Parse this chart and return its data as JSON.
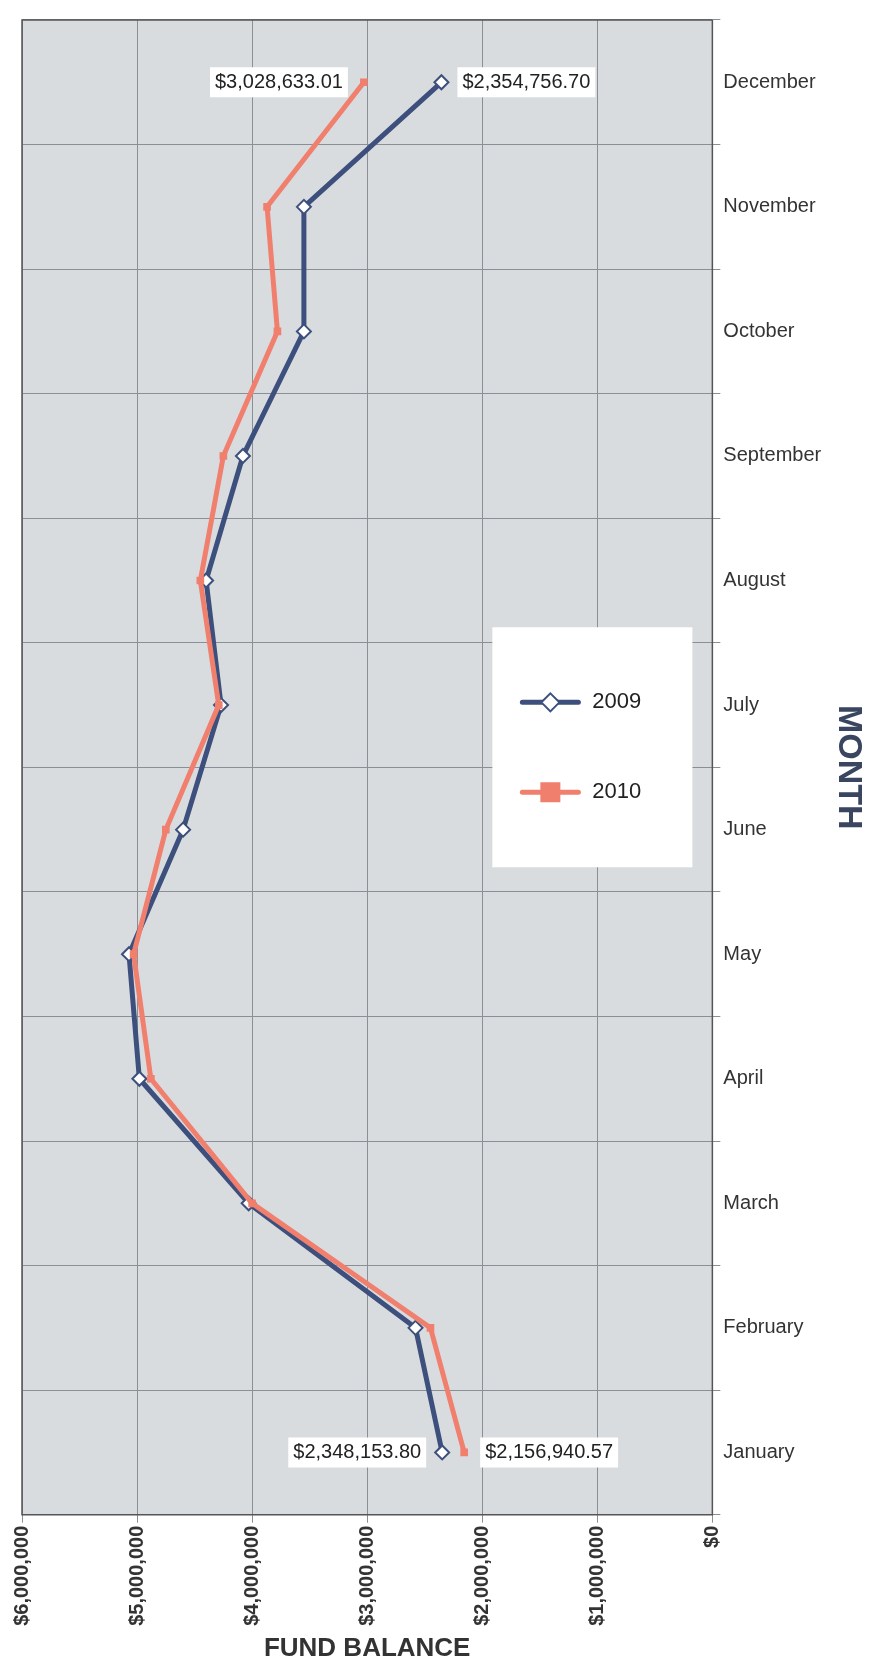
{
  "chart_data": {
    "type": "line",
    "orientation": "horizontal",
    "xlabel": "FUND BALANCE",
    "ylabel": "MONTH",
    "categories": [
      "December",
      "November",
      "October",
      "September",
      "August",
      "July",
      "June",
      "May",
      "April",
      "March",
      "February",
      "January"
    ],
    "xlim": [
      6000000,
      0
    ],
    "xticks": [
      {
        "value": 6000000,
        "label": "$6,000,000"
      },
      {
        "value": 5000000,
        "label": "$5,000,000"
      },
      {
        "value": 4000000,
        "label": "$4,000,000"
      },
      {
        "value": 3000000,
        "label": "$3,000,000"
      },
      {
        "value": 2000000,
        "label": "$2,000,000"
      },
      {
        "value": 1000000,
        "label": "$1,000,000"
      },
      {
        "value": 0,
        "label": "$0"
      }
    ],
    "grid": true,
    "legend": "right",
    "series": [
      {
        "name": "2009",
        "color": "#3d4f7c",
        "marker": "diamond",
        "values": [
          2354756.7,
          3550000,
          3550000,
          4080000,
          4400000,
          4270000,
          4600000,
          5070000,
          4980000,
          4030000,
          2580000,
          2348153.8
        ],
        "value_labels": [
          "$2,354,756.70",
          null,
          null,
          null,
          null,
          null,
          null,
          null,
          null,
          null,
          null,
          "$2,348,153.80"
        ]
      },
      {
        "name": "2010",
        "color": "#f07f6e",
        "marker": "square",
        "values": [
          3028633.01,
          3870000,
          3780000,
          4250000,
          4450000,
          4290000,
          4750000,
          5030000,
          4880000,
          4000000,
          2450000,
          2156940.57
        ],
        "value_labels": [
          "$3,028,633.01",
          null,
          null,
          null,
          null,
          null,
          null,
          null,
          null,
          null,
          null,
          "$2,156,940.57"
        ]
      }
    ]
  }
}
